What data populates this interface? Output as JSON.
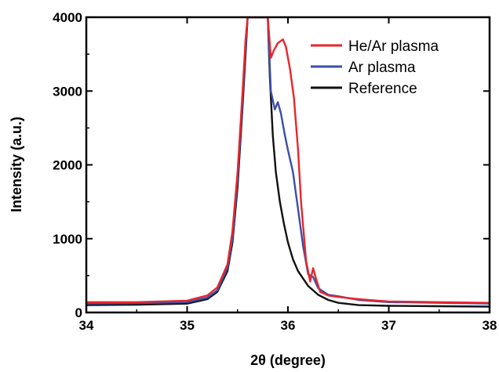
{
  "chart_data": {
    "type": "line",
    "xlabel": "2θ (degree)",
    "ylabel": "Intensity (a.u.)",
    "xlim": [
      34,
      38
    ],
    "ylim": [
      0,
      4000
    ],
    "x_ticks": [
      34,
      35,
      36,
      37,
      38
    ],
    "y_ticks": [
      0,
      1000,
      2000,
      3000,
      4000
    ],
    "legend_position": "top-right",
    "grid": false,
    "series": [
      {
        "name": "He/Ar plasma",
        "color": "#e8262b",
        "x": [
          34.0,
          34.5,
          35.0,
          35.2,
          35.3,
          35.4,
          35.45,
          35.5,
          35.55,
          35.58,
          35.6,
          35.8,
          35.83,
          35.86,
          35.9,
          35.95,
          35.98,
          36.02,
          36.06,
          36.1,
          36.13,
          36.18,
          36.22,
          36.25,
          36.28,
          36.32,
          36.4,
          36.5,
          36.7,
          37.0,
          37.5,
          38.0
        ],
        "values": [
          140,
          140,
          160,
          230,
          340,
          650,
          1100,
          1900,
          3000,
          3700,
          4000,
          4000,
          3450,
          3550,
          3650,
          3700,
          3600,
          3300,
          2900,
          2200,
          1500,
          700,
          420,
          600,
          450,
          280,
          230,
          210,
          180,
          150,
          140,
          130
        ]
      },
      {
        "name": "Ar plasma",
        "color": "#3a4fa8",
        "x": [
          34.0,
          34.5,
          35.0,
          35.2,
          35.3,
          35.4,
          35.45,
          35.5,
          35.55,
          35.58,
          35.6,
          35.8,
          35.83,
          35.87,
          35.9,
          35.93,
          35.97,
          36.0,
          36.05,
          36.1,
          36.15,
          36.2,
          36.25,
          36.3,
          36.4,
          36.5,
          36.7,
          37.0,
          37.5,
          38.0
        ],
        "values": [
          120,
          125,
          140,
          200,
          300,
          600,
          1000,
          1800,
          2900,
          3600,
          4000,
          4000,
          3000,
          2750,
          2850,
          2700,
          2400,
          2200,
          1900,
          1400,
          900,
          520,
          480,
          330,
          240,
          220,
          170,
          140,
          130,
          120
        ]
      },
      {
        "name": "Reference",
        "color": "#111111",
        "x": [
          34.0,
          34.5,
          35.0,
          35.2,
          35.3,
          35.4,
          35.45,
          35.5,
          35.55,
          35.58,
          35.6,
          35.8,
          35.82,
          35.85,
          35.88,
          35.92,
          35.96,
          36.0,
          36.05,
          36.1,
          36.2,
          36.3,
          36.4,
          36.5,
          36.7,
          37.0,
          37.5,
          38.0
        ],
        "values": [
          100,
          105,
          120,
          180,
          280,
          560,
          950,
          1700,
          2800,
          3500,
          4000,
          4000,
          3200,
          2400,
          1900,
          1500,
          1200,
          950,
          720,
          560,
          360,
          240,
          170,
          130,
          100,
          90,
          85,
          80
        ]
      }
    ]
  }
}
